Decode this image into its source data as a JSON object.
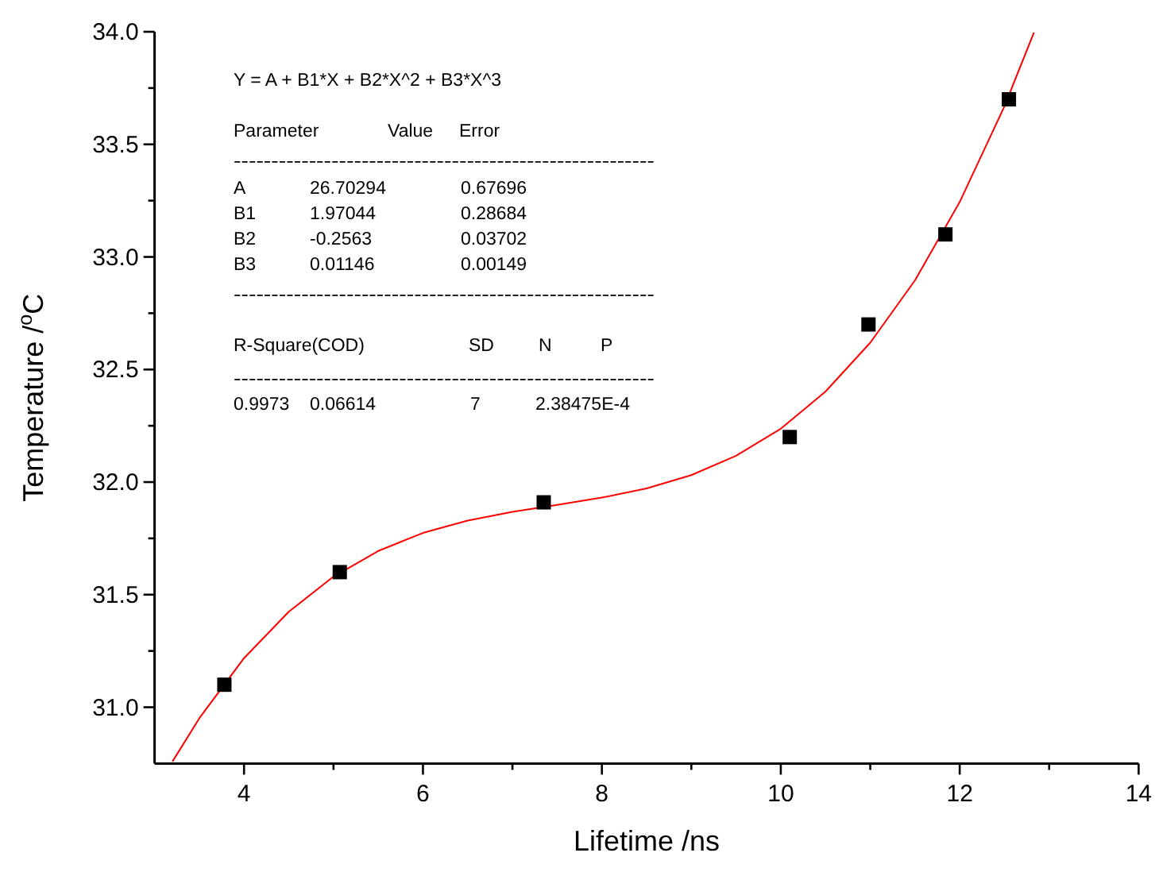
{
  "chart_data": {
    "type": "scatter",
    "xlabel": "Lifetime /ns",
    "ylabel": "Temperature /$^{o}$C",
    "xlim": [
      3,
      14
    ],
    "ylim": [
      30.75,
      34
    ],
    "xticks": [
      4,
      {
        "value": 5,
        "label": null
      },
      6,
      {
        "value": 7,
        "label": null
      },
      8,
      {
        "value": 9,
        "label": null
      },
      10,
      {
        "value": 11,
        "label": null
      },
      12,
      {
        "value": 13,
        "label": null
      },
      14
    ],
    "yticks": [
      "31.0",
      {
        "value": 31.25,
        "label": null
      },
      {
        "value": 31.5,
        "label": "31.5"
      },
      {
        "value": 31.75,
        "label": null
      },
      {
        "value": 32,
        "label": "32.0"
      },
      {
        "value": 32.25,
        "label": null
      },
      {
        "value": 32.5,
        "label": "32.5"
      },
      {
        "value": 32.75,
        "label": null
      },
      {
        "value": 33,
        "label": "33.0"
      },
      {
        "value": 33.25,
        "label": null
      },
      {
        "value": 33.5,
        "label": "33.5"
      },
      {
        "value": 33.75,
        "label": null
      },
      {
        "value": 34,
        "label": "34.0"
      }
    ],
    "grid": false,
    "series": [
      {
        "marker": "square",
        "color": "#000000",
        "x": [
          3.78,
          5.07,
          7.35,
          10.1,
          10.98,
          11.84,
          12.55
        ],
        "values": [
          31.1,
          31.6,
          31.91,
          32.2,
          32.7,
          33.1,
          33.7
        ]
      },
      {
        "type": "line",
        "color": "#ff0000",
        "x": [
          3.2,
          3.5,
          4,
          4.5,
          5,
          5.5,
          6,
          6.5,
          7,
          7.5,
          8,
          8.5,
          9,
          9.5,
          10,
          10.5,
          11,
          11.5,
          12,
          12.5,
          12.83
        ],
        "values": [
          30.759,
          30.951,
          31.218,
          31.424,
          31.58,
          31.694,
          31.774,
          31.829,
          31.868,
          31.899,
          31.931,
          31.972,
          32.031,
          32.117,
          32.237,
          32.402,
          32.619,
          32.896,
          33.244,
          33.669,
          33.997
        ]
      }
    ],
    "annotations": [
      "Y = A + B1*X + B2*X^2 + B3*X^3",
      "Parameter",
      "Value",
      "Error",
      "--------------------------------------------------------",
      "A",
      "26.70294",
      "0.67696",
      "B1",
      "1.97044",
      "0.28684",
      "B2",
      "-0.2563",
      "0.03702",
      "B3",
      "0.01146",
      "0.00149",
      "--------------------------------------------------------",
      "R-Square(COD)",
      "SD",
      "N",
      "P",
      "--------------------------------------------------------",
      "0.9973",
      "0.06614",
      "7",
      "2.38475E-4"
    ]
  }
}
